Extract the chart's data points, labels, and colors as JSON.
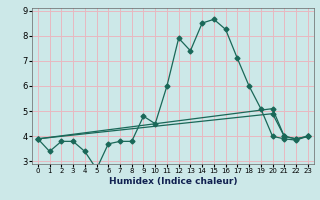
{
  "xlabel": "Humidex (Indice chaleur)",
  "ylabel": "",
  "bg_color": "#cce8e8",
  "grid_color": "#e8b8c0",
  "line_color": "#1a6858",
  "xlim": [
    -0.5,
    23.5
  ],
  "ylim": [
    2.9,
    9.1
  ],
  "yticks": [
    3,
    4,
    5,
    6,
    7,
    8,
    9
  ],
  "xticks": [
    0,
    1,
    2,
    3,
    4,
    5,
    6,
    7,
    8,
    9,
    10,
    11,
    12,
    13,
    14,
    15,
    16,
    17,
    18,
    19,
    20,
    21,
    22,
    23
  ],
  "line1_x": [
    0,
    1,
    2,
    3,
    4,
    5,
    6,
    7,
    8,
    9,
    10,
    11,
    12,
    13,
    14,
    15,
    16,
    17,
    18,
    19,
    20,
    21,
    22,
    23
  ],
  "line1_y": [
    3.9,
    3.4,
    3.8,
    3.8,
    3.4,
    2.7,
    3.7,
    3.8,
    3.8,
    4.8,
    4.5,
    6.0,
    7.9,
    7.4,
    8.5,
    8.65,
    8.25,
    7.1,
    6.0,
    5.1,
    4.0,
    3.9,
    3.85,
    4.0
  ],
  "line2_x": [
    0,
    20,
    21,
    22,
    23
  ],
  "line2_y": [
    3.9,
    5.1,
    4.0,
    3.9,
    4.0
  ],
  "line3_x": [
    0,
    20,
    21,
    22,
    23
  ],
  "line3_y": [
    3.9,
    4.9,
    4.0,
    3.9,
    4.0
  ],
  "marker": "D",
  "marker_size": 2.5,
  "line_width": 0.9
}
